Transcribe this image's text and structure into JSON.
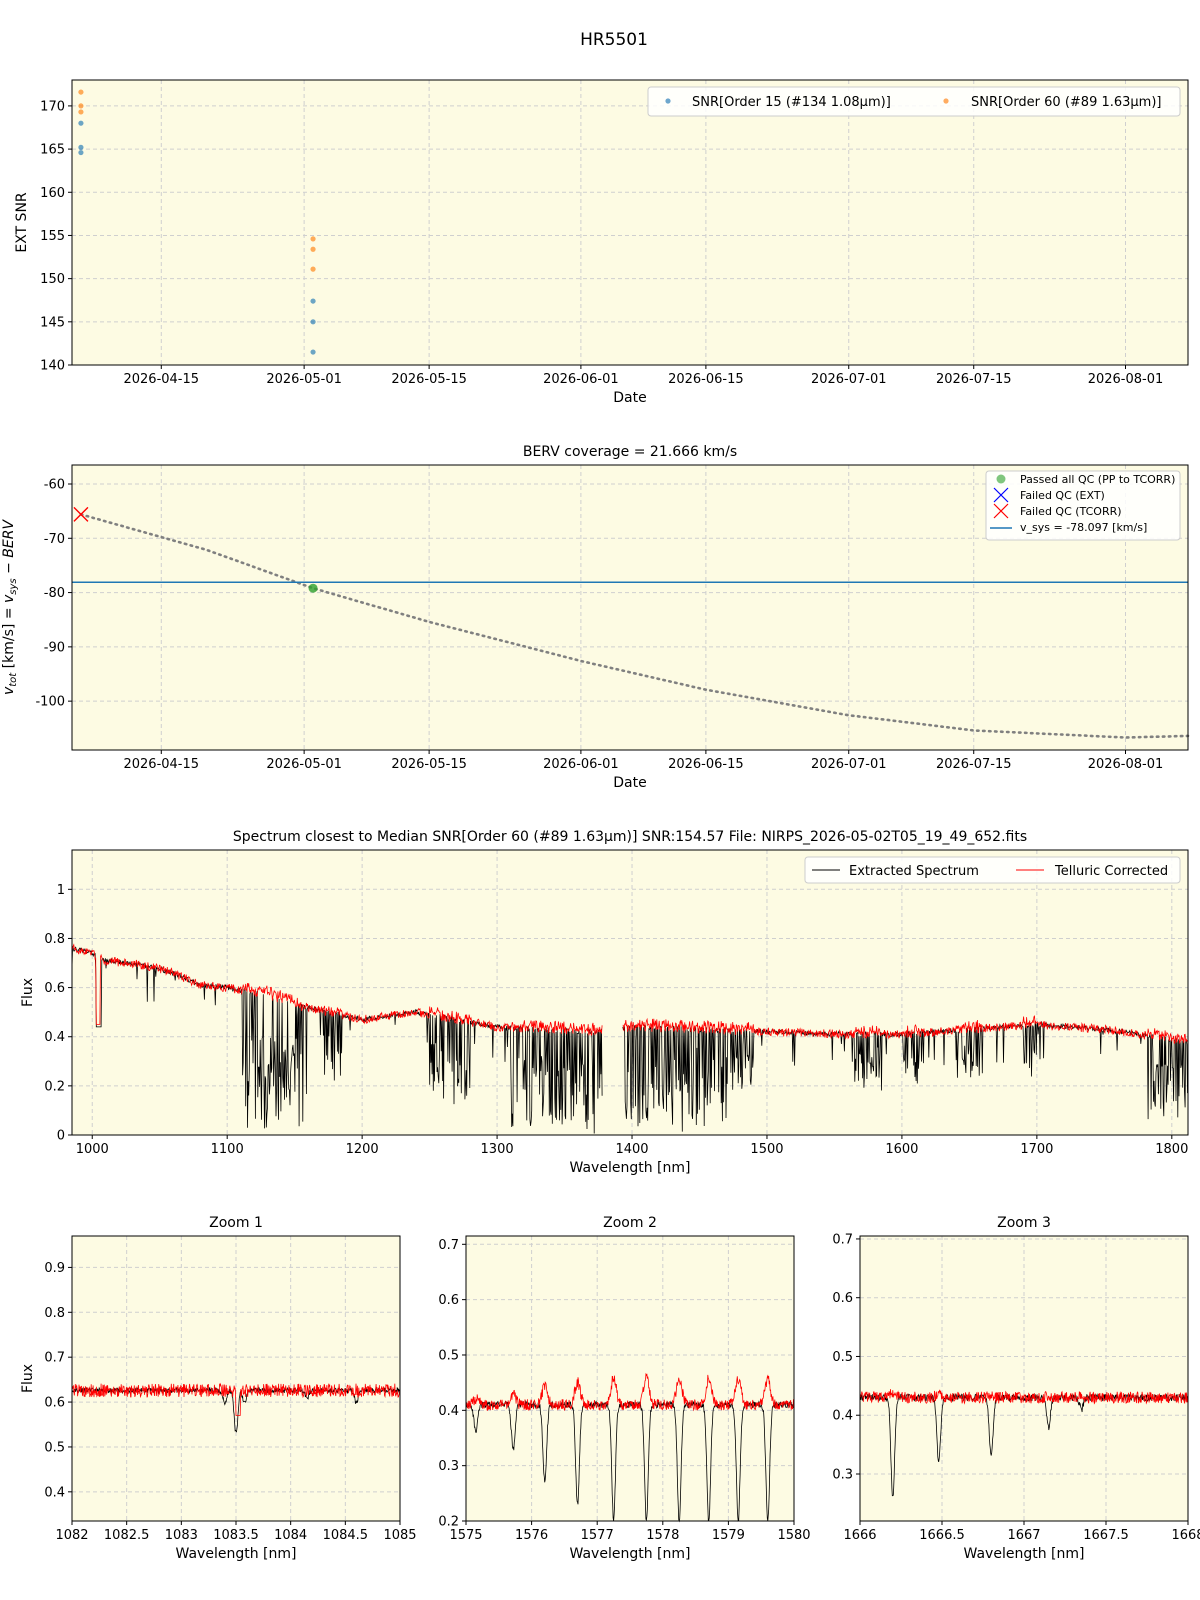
{
  "figure_title": "HR5501",
  "colors": {
    "panel_bg": "#fdfbe3",
    "grid": "#cfcfcf",
    "snr_order15": "#1f77b4",
    "snr_order60": "#ff7f0e",
    "passed": "#2ca02c",
    "failed_tcorr": "#ff0000",
    "vsys_line": "#1f77b4",
    "berv_curve": "#808080",
    "extracted": "#000000",
    "telluric": "#ff0000"
  },
  "chart_data": [
    {
      "id": "snr",
      "type": "scatter",
      "title": "",
      "xlabel": "Date",
      "ylabel": "EXT SNR",
      "xlim": [
        "2026-04-05",
        "2026-08-08"
      ],
      "ylim": [
        140,
        173
      ],
      "xticks": [
        "2026-04-15",
        "2026-05-01",
        "2026-05-15",
        "2026-06-01",
        "2026-06-15",
        "2026-07-01",
        "2026-07-15",
        "2026-08-01"
      ],
      "yticks": [
        140,
        145,
        150,
        155,
        160,
        165,
        170
      ],
      "grid": true,
      "legend": "top-right",
      "series": [
        {
          "name": "SNR[Order 15 (#134 1.08μm)]",
          "color": "#1f77b4",
          "points": [
            [
              "2026-04-06",
              168.0
            ],
            [
              "2026-04-06",
              165.2
            ],
            [
              "2026-04-06",
              164.6
            ],
            [
              "2026-05-02",
              147.4
            ],
            [
              "2026-05-02",
              145.0
            ],
            [
              "2026-05-02",
              141.5
            ]
          ]
        },
        {
          "name": "SNR[Order 60 (#89 1.63μm)]",
          "color": "#ff7f0e",
          "points": [
            [
              "2026-04-06",
              171.6
            ],
            [
              "2026-04-06",
              170.0
            ],
            [
              "2026-04-06",
              169.3
            ],
            [
              "2026-05-02",
              154.6
            ],
            [
              "2026-05-02",
              153.4
            ],
            [
              "2026-05-02",
              151.1
            ]
          ]
        }
      ]
    },
    {
      "id": "berv",
      "type": "line",
      "title": "BERV coverage = 21.666 km/s",
      "xlabel": "Date",
      "ylabel": "v_tot [km/s] = v_sys − BERV",
      "xlim": [
        "2026-04-05",
        "2026-08-08"
      ],
      "ylim": [
        -109,
        -56.5
      ],
      "xticks": [
        "2026-04-15",
        "2026-05-01",
        "2026-05-15",
        "2026-06-01",
        "2026-06-15",
        "2026-07-01",
        "2026-07-15",
        "2026-08-01"
      ],
      "yticks": [
        -100,
        -90,
        -80,
        -70,
        -60
      ],
      "grid": true,
      "legend": "top-right",
      "vsys": -78.097,
      "curve": [
        [
          "2026-04-06",
          -65.6
        ],
        [
          "2026-04-20",
          -72.1
        ],
        [
          "2026-05-02",
          -79.2
        ],
        [
          "2026-05-15",
          -85.4
        ],
        [
          "2026-06-01",
          -92.6
        ],
        [
          "2026-06-15",
          -97.9
        ],
        [
          "2026-07-01",
          -102.6
        ],
        [
          "2026-07-15",
          -105.4
        ],
        [
          "2026-08-01",
          -106.7
        ],
        [
          "2026-08-08",
          -106.4
        ]
      ],
      "passed": [
        [
          "2026-05-02",
          -79.2
        ]
      ],
      "failed_tcorr": [
        [
          "2026-04-06",
          -65.6
        ]
      ],
      "legend_entries": [
        "Passed all QC (PP to TCORR)",
        "Failed QC (EXT)",
        "Failed QC (TCORR)",
        "v_sys = -78.097 [km/s]"
      ]
    },
    {
      "id": "spectrum",
      "type": "line",
      "title": "Spectrum closest to Median SNR[Order 60 (#89 1.63μm)]     SNR:154.57     File: NIRPS_2026-05-02T05_19_49_652.fits",
      "xlabel": "Wavelength [nm]",
      "ylabel": "Flux",
      "xlim": [
        985,
        1812
      ],
      "ylim": [
        0,
        1.16
      ],
      "xticks": [
        1000,
        1100,
        1200,
        1300,
        1400,
        1500,
        1600,
        1700,
        1800
      ],
      "yticks": [
        0.0,
        0.2,
        0.4,
        0.6,
        0.8,
        1.0
      ],
      "grid": true,
      "legend": "top-right",
      "series_names": [
        "Extracted Spectrum",
        "Telluric Corrected"
      ],
      "continuum": [
        [
          985,
          0.76
        ],
        [
          1000,
          0.74
        ],
        [
          1010,
          0.71
        ],
        [
          1040,
          0.69
        ],
        [
          1060,
          0.66
        ],
        [
          1080,
          0.61
        ],
        [
          1100,
          0.6
        ],
        [
          1130,
          0.57
        ],
        [
          1150,
          0.53
        ],
        [
          1200,
          0.47
        ],
        [
          1240,
          0.5
        ],
        [
          1280,
          0.46
        ],
        [
          1300,
          0.44
        ],
        [
          1370,
          0.42
        ],
        [
          1400,
          0.44
        ],
        [
          1500,
          0.42
        ],
        [
          1560,
          0.41
        ],
        [
          1600,
          0.41
        ],
        [
          1700,
          0.45
        ],
        [
          1750,
          0.43
        ],
        [
          1812,
          0.38
        ]
      ],
      "gap_nm": [
        1378,
        1393
      ]
    },
    {
      "id": "zoom1",
      "type": "line",
      "title": "Zoom 1",
      "xlabel": "Wavelength [nm]",
      "ylabel": "Flux",
      "xlim": [
        1082.0,
        1085.0
      ],
      "ylim": [
        0.335,
        0.97
      ],
      "xticks": [
        1082.0,
        1082.5,
        1083.0,
        1083.5,
        1084.0,
        1084.5,
        1085.0
      ],
      "yticks": [
        0.4,
        0.5,
        0.6,
        0.7,
        0.8,
        0.9
      ],
      "continuum": 0.626,
      "lines": [
        [
          1083.5,
          0.53
        ],
        [
          1083.58,
          0.6
        ],
        [
          1083.4,
          0.6
        ],
        [
          1084.15,
          0.61
        ],
        [
          1084.6,
          0.6
        ]
      ]
    },
    {
      "id": "zoom2",
      "type": "line",
      "title": "Zoom 2",
      "xlabel": "Wavelength [nm]",
      "ylabel": "",
      "xlim": [
        1575,
        1580
      ],
      "ylim": [
        0.2,
        0.715
      ],
      "xticks": [
        1575,
        1576,
        1577,
        1578,
        1579,
        1580
      ],
      "yticks": [
        0.2,
        0.3,
        0.4,
        0.5,
        0.6,
        0.7
      ],
      "continuum": 0.41,
      "lines": [
        [
          1575.15,
          0.36
        ],
        [
          1575.72,
          0.33
        ],
        [
          1576.2,
          0.27
        ],
        [
          1576.7,
          0.23
        ],
        [
          1577.25,
          0.2
        ],
        [
          1577.75,
          0.2
        ],
        [
          1578.25,
          0.2
        ],
        [
          1578.7,
          0.2
        ],
        [
          1579.15,
          0.2
        ],
        [
          1579.6,
          0.2
        ]
      ]
    },
    {
      "id": "zoom3",
      "type": "line",
      "title": "Zoom 3",
      "xlabel": "Wavelength [nm]",
      "ylabel": "",
      "xlim": [
        1666.0,
        1668.0
      ],
      "ylim": [
        0.22,
        0.705
      ],
      "xticks": [
        1666.0,
        1666.5,
        1667.0,
        1667.5,
        1668.0
      ],
      "yticks": [
        0.3,
        0.4,
        0.5,
        0.6,
        0.7
      ],
      "continuum": 0.43,
      "lines": [
        [
          1666.2,
          0.26
        ],
        [
          1666.48,
          0.32
        ],
        [
          1666.8,
          0.33
        ],
        [
          1667.15,
          0.38
        ],
        [
          1667.35,
          0.41
        ]
      ]
    }
  ]
}
